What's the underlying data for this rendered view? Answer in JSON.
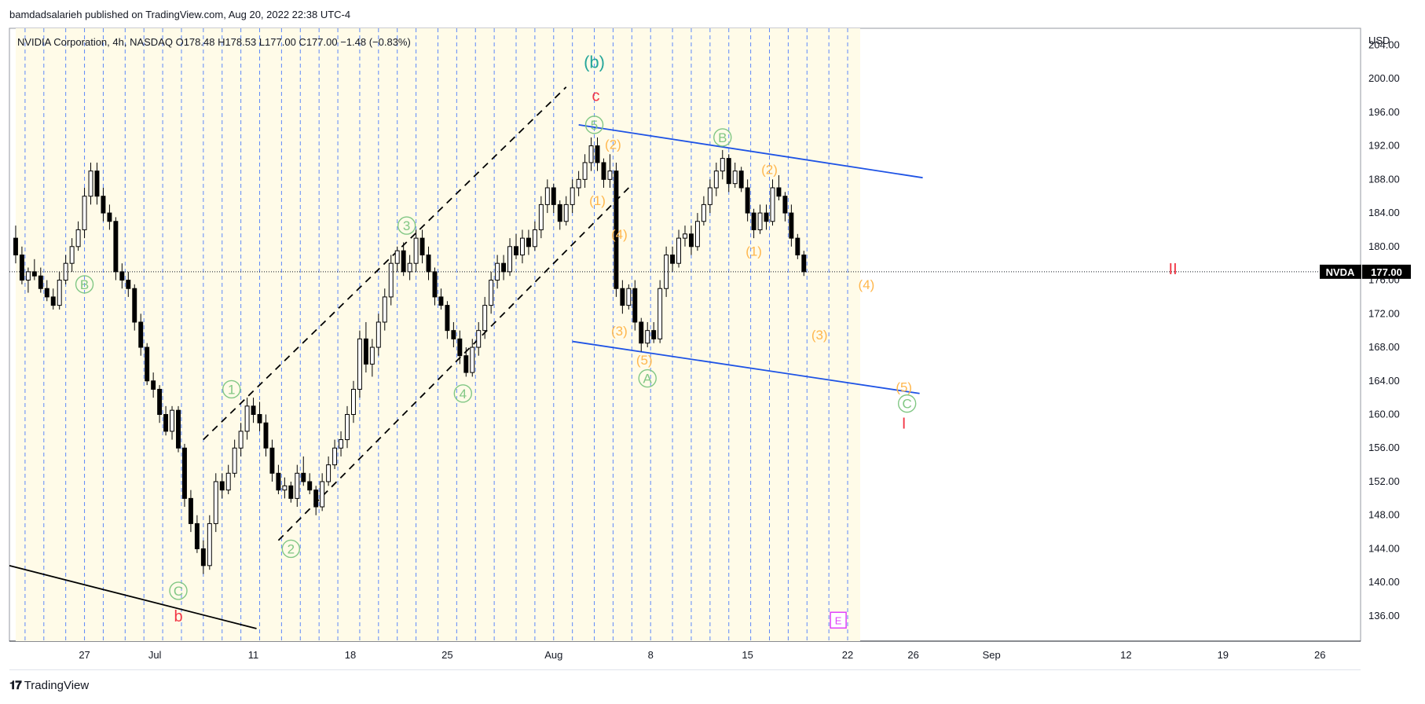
{
  "header": {
    "published": "bamdadsalarieh published on TradingView.com, Aug 20, 2022 22:38 UTC-4"
  },
  "footer": {
    "brand": "TradingView",
    "logo_icon": "tradingview-logo-icon"
  },
  "chart_data": {
    "type": "candlestick",
    "symbol_line": {
      "name": "NVIDIA Corporation",
      "interval": "4h",
      "exchange": "NASDAQ",
      "open": "O178.48",
      "high": "H178.53",
      "low": "L177.00",
      "close": "C177.00",
      "change": "−1.48 (−0.83%)"
    },
    "currency": "USD",
    "ylim": [
      133,
      206
    ],
    "y_ticks": [
      "204.00",
      "200.00",
      "196.00",
      "192.00",
      "188.00",
      "184.00",
      "180.00",
      "176.00",
      "172.00",
      "168.00",
      "164.00",
      "160.00",
      "156.00",
      "152.00",
      "148.00",
      "144.00",
      "140.00",
      "136.00"
    ],
    "x_ticks": [
      "27",
      "Jul",
      "11",
      "18",
      "25",
      "Aug",
      "8",
      "15",
      "22",
      "26",
      "Sep",
      "12",
      "19",
      "26"
    ],
    "last_price": {
      "ticker": "NVDA",
      "value": 177.0
    },
    "grid": false,
    "bars_x_range": [
      0,
      270
    ],
    "x_view": [
      -2,
      430
    ],
    "x_tick_positions": [
      22,
      44.5,
      76,
      107,
      138,
      172,
      203,
      234,
      266,
      287,
      312,
      355,
      386,
      417
    ],
    "session_lines_x": [
      3,
      9,
      16,
      22,
      28,
      35,
      41,
      47,
      53,
      60,
      66,
      72,
      78,
      85,
      91,
      97,
      103,
      110,
      116,
      122,
      128,
      135,
      141,
      147,
      153,
      160,
      166,
      172,
      178,
      185,
      191,
      197,
      203,
      210,
      216,
      222,
      228,
      235,
      241,
      247,
      253,
      260,
      266
    ],
    "candles": [
      [
        0,
        181,
        182.5,
        178,
        179
      ],
      [
        2,
        179,
        180,
        175.5,
        176
      ],
      [
        4,
        176,
        177.5,
        174.5,
        177
      ],
      [
        6,
        177,
        178.5,
        176,
        176.5
      ],
      [
        8,
        176.5,
        177.5,
        174.5,
        175
      ],
      [
        10,
        175,
        176,
        173.5,
        174
      ],
      [
        12,
        174,
        175,
        172.5,
        173
      ],
      [
        14,
        173,
        177,
        172.5,
        176
      ],
      [
        16,
        176,
        179,
        175.5,
        178
      ],
      [
        18,
        178,
        181,
        177,
        180
      ],
      [
        20,
        180,
        183,
        179.5,
        182
      ],
      [
        22,
        182,
        187,
        181,
        186
      ],
      [
        24,
        186,
        190,
        185,
        189
      ],
      [
        26,
        189,
        190,
        185,
        186
      ],
      [
        28,
        186,
        187,
        183,
        184
      ],
      [
        30,
        184,
        185,
        182,
        183
      ],
      [
        32,
        183,
        183.5,
        176,
        177
      ],
      [
        34,
        177,
        178,
        175,
        176
      ],
      [
        36,
        176,
        177,
        174,
        175
      ],
      [
        38,
        175,
        175.5,
        170,
        171
      ],
      [
        40,
        171,
        172,
        167,
        168
      ],
      [
        42,
        168,
        168.5,
        163.5,
        164
      ],
      [
        44,
        164,
        165,
        162,
        163
      ],
      [
        46,
        163,
        163.5,
        159,
        160
      ],
      [
        48,
        160,
        161,
        157.5,
        158
      ],
      [
        50,
        158,
        161,
        157,
        160.5
      ],
      [
        52,
        160.5,
        161,
        155.5,
        156
      ],
      [
        54,
        156,
        156.5,
        149,
        150
      ],
      [
        56,
        150,
        151,
        146,
        147
      ],
      [
        58,
        147,
        148,
        143.5,
        144
      ],
      [
        60,
        144,
        145,
        141,
        142
      ],
      [
        62,
        142,
        148,
        141.5,
        147
      ],
      [
        64,
        147,
        153,
        146,
        152
      ],
      [
        66,
        152,
        153,
        150,
        151
      ],
      [
        68,
        151,
        154,
        150.5,
        153
      ],
      [
        70,
        153,
        157,
        152.5,
        156
      ],
      [
        72,
        156,
        159,
        155,
        158
      ],
      [
        74,
        158,
        162,
        157,
        161
      ],
      [
        76,
        161,
        162,
        159,
        160
      ],
      [
        78,
        160,
        161.5,
        158,
        159
      ],
      [
        80,
        159,
        160,
        155,
        156
      ],
      [
        82,
        156,
        157,
        152,
        153
      ],
      [
        84,
        153,
        154,
        150.5,
        151
      ],
      [
        86,
        151,
        152.5,
        150,
        151.5
      ],
      [
        88,
        151.5,
        152,
        149.5,
        150
      ],
      [
        90,
        150,
        154,
        149,
        153
      ],
      [
        92,
        153,
        155,
        151.5,
        152
      ],
      [
        94,
        152,
        153,
        150.5,
        151
      ],
      [
        96,
        151,
        151.5,
        148,
        149
      ],
      [
        98,
        149,
        153,
        148.5,
        152
      ],
      [
        100,
        152,
        155,
        151.5,
        154
      ],
      [
        102,
        154,
        157,
        153.5,
        156
      ],
      [
        104,
        156,
        158,
        155,
        157
      ],
      [
        106,
        157,
        161,
        156,
        160
      ],
      [
        108,
        160,
        164,
        159,
        163
      ],
      [
        110,
        163,
        170,
        162,
        169
      ],
      [
        112,
        169,
        171,
        165,
        166
      ],
      [
        114,
        166,
        169,
        164.5,
        168
      ],
      [
        116,
        168,
        172,
        167,
        171
      ],
      [
        118,
        171,
        175,
        170,
        174
      ],
      [
        120,
        174,
        179,
        173,
        178
      ],
      [
        122,
        178,
        180,
        177,
        179.5
      ],
      [
        124,
        179.5,
        180.5,
        176.5,
        177
      ],
      [
        126,
        177,
        179,
        176,
        178
      ],
      [
        128,
        178,
        182,
        177,
        181
      ],
      [
        130,
        181,
        182,
        178,
        179
      ],
      [
        132,
        179,
        180,
        176,
        177
      ],
      [
        134,
        177,
        177.5,
        173,
        174
      ],
      [
        136,
        174,
        175,
        172.5,
        173
      ],
      [
        138,
        173,
        173.5,
        169,
        170
      ],
      [
        140,
        170,
        171,
        168,
        169
      ],
      [
        142,
        169,
        170,
        166,
        167
      ],
      [
        144,
        167,
        168,
        164.5,
        165
      ],
      [
        146,
        165,
        169,
        164.5,
        168
      ],
      [
        148,
        168,
        171,
        167,
        170
      ],
      [
        150,
        170,
        174,
        169,
        173
      ],
      [
        152,
        173,
        177,
        172,
        176
      ],
      [
        154,
        176,
        179,
        175,
        178
      ],
      [
        156,
        178,
        179,
        176,
        177
      ],
      [
        158,
        177,
        181,
        176.5,
        180
      ],
      [
        160,
        180,
        181.5,
        178.5,
        179
      ],
      [
        162,
        179,
        182,
        178,
        181
      ],
      [
        164,
        181,
        182,
        179,
        180
      ],
      [
        166,
        180,
        183,
        179.5,
        182
      ],
      [
        168,
        182,
        186,
        181,
        185
      ],
      [
        170,
        185,
        188,
        184,
        187
      ],
      [
        172,
        187,
        187.5,
        184,
        185
      ],
      [
        174,
        185,
        185.5,
        182,
        183
      ],
      [
        176,
        183,
        186,
        182.5,
        185
      ],
      [
        178,
        185,
        188,
        184,
        187
      ],
      [
        180,
        187,
        189,
        186,
        188
      ],
      [
        182,
        188,
        191,
        187,
        190
      ],
      [
        184,
        190,
        193,
        189,
        192
      ],
      [
        186,
        192,
        193,
        189,
        190
      ],
      [
        188,
        190,
        190.5,
        187,
        188
      ],
      [
        190,
        188,
        191,
        187,
        189
      ],
      [
        192,
        189,
        190,
        174,
        175
      ],
      [
        194,
        175,
        176,
        172,
        173
      ],
      [
        196,
        173,
        175.5,
        172.5,
        175
      ],
      [
        198,
        175,
        176,
        170,
        171
      ],
      [
        200,
        171,
        171.5,
        167.5,
        168.5
      ],
      [
        202,
        168.5,
        171,
        168,
        170
      ],
      [
        204,
        170,
        171,
        168.5,
        169
      ],
      [
        206,
        169,
        176,
        168.5,
        175
      ],
      [
        208,
        175,
        180,
        174,
        179
      ],
      [
        210,
        179,
        180,
        177,
        178
      ],
      [
        212,
        178,
        182,
        177.5,
        181
      ],
      [
        214,
        181,
        182.5,
        180,
        181.5
      ],
      [
        216,
        181.5,
        182.5,
        179,
        180
      ],
      [
        218,
        180,
        184,
        179.5,
        183
      ],
      [
        220,
        183,
        186,
        182.5,
        185
      ],
      [
        222,
        185,
        188,
        184,
        187
      ],
      [
        224,
        187,
        190,
        186,
        189
      ],
      [
        226,
        189,
        191.5,
        188,
        190.5
      ],
      [
        228,
        190.5,
        191,
        186.5,
        187.5
      ],
      [
        230,
        187.5,
        190,
        187,
        189
      ],
      [
        232,
        189,
        189.5,
        186.5,
        187
      ],
      [
        234,
        187,
        188,
        183,
        184
      ],
      [
        236,
        184,
        184.5,
        181,
        182
      ],
      [
        238,
        182,
        185,
        181.5,
        184
      ],
      [
        240,
        184,
        185,
        182,
        183
      ],
      [
        242,
        183,
        188,
        182.5,
        187
      ],
      [
        244,
        187,
        188.5,
        185.5,
        186
      ],
      [
        246,
        186,
        186.5,
        183,
        184
      ],
      [
        248,
        184,
        185,
        180,
        181
      ],
      [
        250,
        181,
        181.5,
        178.5,
        179
      ],
      [
        252,
        179,
        179.5,
        176.5,
        177
      ]
    ],
    "annotations": [
      {
        "text": "(b)",
        "x": 185,
        "y": 202,
        "color": "#26a69a",
        "size": 22
      },
      {
        "text": "c",
        "x": 185.5,
        "y": 198,
        "color": "#f23645",
        "size": 20
      },
      {
        "text": "5",
        "x": 185,
        "y": 194.5,
        "color": "#81c784",
        "size": 17,
        "circle": true
      },
      {
        "text": "(2)",
        "x": 191,
        "y": 192.2,
        "color": "#ffb74d",
        "size": 17
      },
      {
        "text": "B",
        "x": 226,
        "y": 193,
        "color": "#81c784",
        "size": 17,
        "circle": true
      },
      {
        "text": "(2)",
        "x": 241,
        "y": 189.2,
        "color": "#ffb74d",
        "size": 17
      },
      {
        "text": "(1)",
        "x": 186,
        "y": 185.5,
        "color": "#ffb74d",
        "size": 17
      },
      {
        "text": "(4)",
        "x": 193,
        "y": 181.5,
        "color": "#ffb74d",
        "size": 17
      },
      {
        "text": "(1)",
        "x": 236,
        "y": 179.5,
        "color": "#ffb74d",
        "size": 17
      },
      {
        "text": "3",
        "x": 125,
        "y": 182.5,
        "color": "#81c784",
        "size": 17,
        "circle": true
      },
      {
        "text": "B",
        "x": 22,
        "y": 175.5,
        "color": "#81c784",
        "size": 17,
        "circle": true
      },
      {
        "text": "(4)",
        "x": 272,
        "y": 175.5,
        "color": "#ffb74d",
        "size": 17
      },
      {
        "text": "II",
        "x": 370,
        "y": 177.4,
        "color": "#f23645",
        "size": 20
      },
      {
        "text": "(3)",
        "x": 193,
        "y": 170,
        "color": "#ffb74d",
        "size": 17
      },
      {
        "text": "(3)",
        "x": 257,
        "y": 169.5,
        "color": "#ffb74d",
        "size": 17
      },
      {
        "text": "(5)",
        "x": 201,
        "y": 166.5,
        "color": "#ffb74d",
        "size": 17
      },
      {
        "text": "A",
        "x": 202,
        "y": 164.3,
        "color": "#81c784",
        "size": 17,
        "circle": true
      },
      {
        "text": "(5)",
        "x": 284,
        "y": 163.3,
        "color": "#ffb74d",
        "size": 17
      },
      {
        "text": "C",
        "x": 285,
        "y": 161.3,
        "color": "#81c784",
        "size": 17,
        "circle": true
      },
      {
        "text": "I",
        "x": 284,
        "y": 159,
        "color": "#f23645",
        "size": 20
      },
      {
        "text": "1",
        "x": 69,
        "y": 163,
        "color": "#81c784",
        "size": 17,
        "circle": true
      },
      {
        "text": "4",
        "x": 143,
        "y": 162.5,
        "color": "#81c784",
        "size": 17,
        "circle": true
      },
      {
        "text": "2",
        "x": 88,
        "y": 144,
        "color": "#81c784",
        "size": 17,
        "circle": true
      },
      {
        "text": "C",
        "x": 52,
        "y": 139,
        "color": "#81c784",
        "size": 17,
        "circle": true
      },
      {
        "text": "b",
        "x": 52,
        "y": 136,
        "color": "#f23645",
        "size": 20
      }
    ],
    "trend_lines": [
      {
        "x1": -2,
        "y1": 142,
        "x2": 77,
        "y2": 134.5,
        "color": "#000000",
        "dash": false
      },
      {
        "x1": 60,
        "y1": 157,
        "x2": 176,
        "y2": 199,
        "color": "#000000",
        "dash": true
      },
      {
        "x1": 84,
        "y1": 145,
        "x2": 196,
        "y2": 187,
        "color": "#000000",
        "dash": true
      },
      {
        "x1": 180,
        "y1": 194.5,
        "x2": 290,
        "y2": 188.2,
        "color": "#1e53e5",
        "dash": false
      },
      {
        "x1": 178,
        "y1": 168.7,
        "x2": 289,
        "y2": 162.5,
        "color": "#1e53e5",
        "dash": false
      }
    ],
    "e_marker": {
      "text": "E",
      "x": 263,
      "y": 135.5,
      "color": "#e040fb"
    }
  }
}
